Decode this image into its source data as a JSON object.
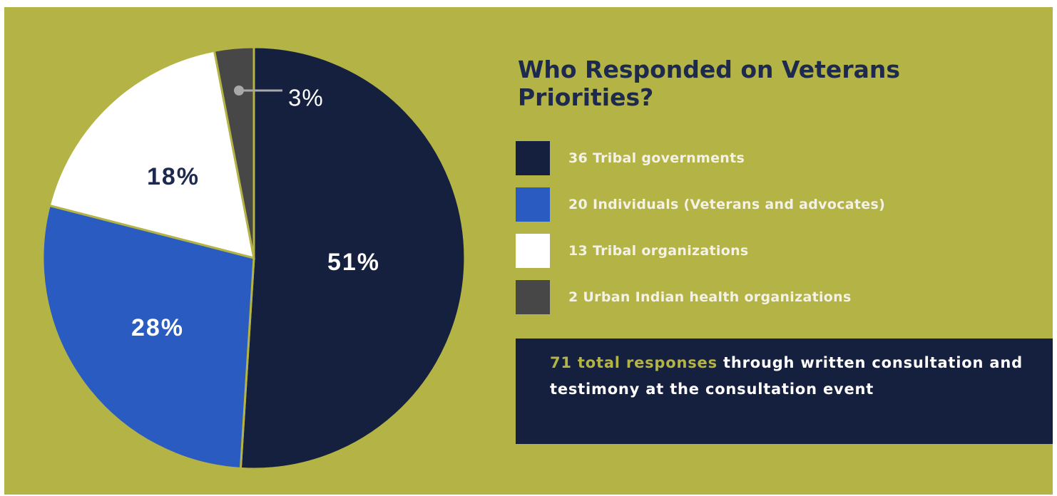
{
  "chart_data": {
    "type": "pie",
    "title": "Who Responded on Veterans Priorities?",
    "slices": [
      {
        "name": "Tribal governments",
        "count": 36,
        "percent": 51,
        "label": "51%",
        "legend": "36 Tribal governments",
        "color": "#151f3e",
        "label_color": "#ffffff"
      },
      {
        "name": "Individuals (Veterans and advocates)",
        "count": 20,
        "percent": 28,
        "label": "28%",
        "legend": "20 Individuals (Veterans and advocates)",
        "color": "#2a5bc0",
        "label_color": "#ffffff"
      },
      {
        "name": "Tribal organizations",
        "count": 13,
        "percent": 18,
        "label": "18%",
        "legend": "13 Tribal organizations",
        "color": "#ffffff",
        "label_color": "#1d2a4d"
      },
      {
        "name": "Urban Indian health organizations",
        "count": 2,
        "percent": 3,
        "label": "3%",
        "legend": "2 Urban Indian health organizations",
        "color": "#474747",
        "label_color": "#ffffff"
      }
    ],
    "legend_position": "right"
  },
  "note": {
    "highlight": "71 total responses",
    "text": " through written consultation and testimony at the consultation event"
  },
  "colors": {
    "background": "#b4b346",
    "title": "#1d2a4d",
    "note_background": "#151f3e"
  }
}
